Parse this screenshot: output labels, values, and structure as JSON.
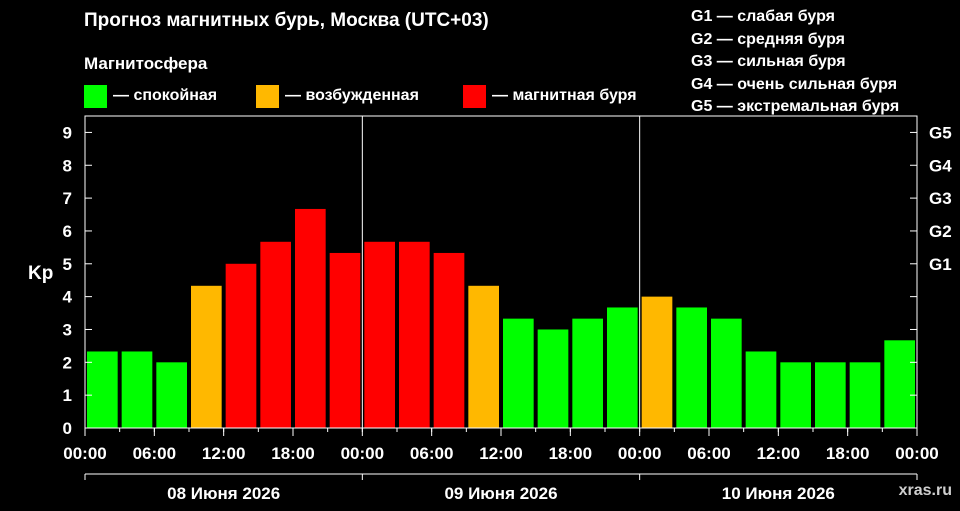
{
  "title": "Прогноз магнитных бурь, Москва (UTC+03)",
  "subtitle": "Магнитосфера",
  "legend": [
    {
      "label": "— спокойная",
      "color": "#00ff00"
    },
    {
      "label": "— возбужденная",
      "color": "#ffb800"
    },
    {
      "label": "— магнитная буря",
      "color": "#ff0000"
    }
  ],
  "g_legend": [
    "G1 — слабая буря",
    "G2 — средняя буря",
    "G3 — сильная буря",
    "G4 — очень сильная буря",
    "G5 — экстремальная буря"
  ],
  "watermark": "xras.ru",
  "chart_data": {
    "type": "bar",
    "ylabel": "Kp",
    "ylim": [
      0,
      9.5
    ],
    "y_ticks": [
      "0",
      "1",
      "2",
      "3",
      "4",
      "5",
      "6",
      "7",
      "8",
      "9"
    ],
    "right_ticks": [
      {
        "label": "G1",
        "value": 5
      },
      {
        "label": "G2",
        "value": 6
      },
      {
        "label": "G3",
        "value": 7
      },
      {
        "label": "G4",
        "value": 8
      },
      {
        "label": "G5",
        "value": 9
      }
    ],
    "x_tick_labels": [
      "00:00",
      "06:00",
      "12:00",
      "18:00",
      "00:00",
      "06:00",
      "12:00",
      "18:00",
      "00:00",
      "06:00",
      "12:00",
      "18:00",
      "00:00"
    ],
    "days": [
      "08 Июня 2026",
      "09 Июня 2026",
      "10 Июня 2026"
    ],
    "bars_per_day": 8,
    "values": [
      2.33,
      2.33,
      2.0,
      4.33,
      5.0,
      5.67,
      6.67,
      5.33,
      5.67,
      5.67,
      5.33,
      4.33,
      3.33,
      3.0,
      3.33,
      3.67,
      4.0,
      3.67,
      3.33,
      2.33,
      2.0,
      2.0,
      2.0,
      2.67
    ],
    "colors": {
      "quiet": "#00ff00",
      "unsettled": "#ffb800",
      "storm": "#ff0000"
    }
  }
}
